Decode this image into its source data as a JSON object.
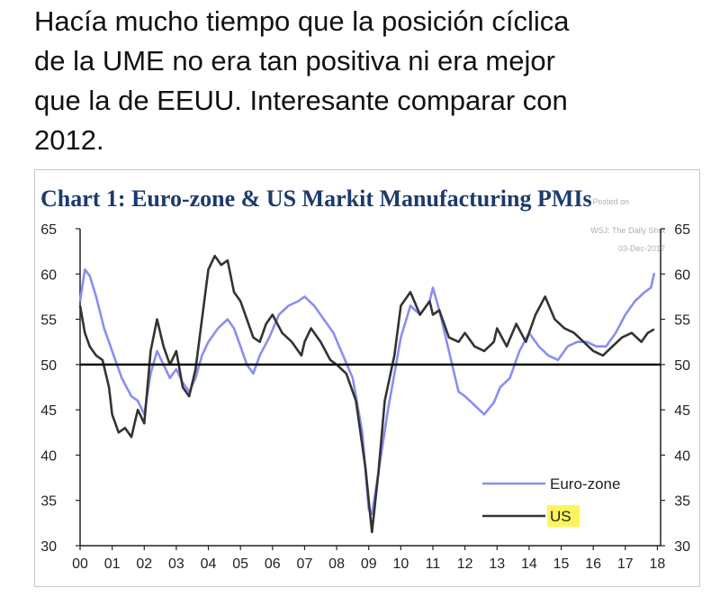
{
  "tweet": {
    "line1": "Hacía mucho tiempo que la posición cíclica",
    "line2": "de la UME no era tan positiva ni era mejor",
    "line3": "que la de EEUU. Interesante comparar con",
    "line4": "2012."
  },
  "chart_data": {
    "type": "line",
    "title": "Chart 1: Euro-zone & US Markit Manufacturing PMIs",
    "watermark": {
      "line1": "Posted on",
      "line2": "WSJ: The Daily Shot",
      "line3": "03-Dec-2017"
    },
    "xlabel": "",
    "ylabel": "",
    "ylim": [
      30,
      65
    ],
    "yticks": [
      30,
      35,
      40,
      45,
      50,
      55,
      60,
      65
    ],
    "xlim": [
      2000,
      2018.1
    ],
    "xtick_labels": [
      "00",
      "01",
      "02",
      "03",
      "04",
      "05",
      "06",
      "07",
      "08",
      "09",
      "10",
      "11",
      "12",
      "13",
      "14",
      "15",
      "16",
      "17",
      "18"
    ],
    "reference_line": 50,
    "legend_position": "bottom-right",
    "series": [
      {
        "name": "Euro-zone",
        "color": "#8a8ef0",
        "x": [
          2000.0,
          2000.15,
          2000.3,
          2000.5,
          2000.75,
          2001.0,
          2001.3,
          2001.6,
          2001.8,
          2002.0,
          2002.2,
          2002.4,
          2002.6,
          2002.8,
          2003.0,
          2003.2,
          2003.4,
          2003.6,
          2003.8,
          2004.0,
          2004.3,
          2004.6,
          2004.8,
          2005.0,
          2005.2,
          2005.4,
          2005.6,
          2005.9,
          2006.2,
          2006.5,
          2006.8,
          2007.0,
          2007.3,
          2007.6,
          2007.9,
          2008.2,
          2008.5,
          2008.8,
          2009.0,
          2009.1,
          2009.3,
          2009.6,
          2010.0,
          2010.3,
          2010.6,
          2010.9,
          2011.0,
          2011.2,
          2011.5,
          2011.8,
          2012.0,
          2012.3,
          2012.6,
          2012.9,
          2013.1,
          2013.4,
          2013.7,
          2014.0,
          2014.3,
          2014.6,
          2014.9,
          2015.2,
          2015.5,
          2015.8,
          2016.1,
          2016.4,
          2016.7,
          2017.0,
          2017.3,
          2017.6,
          2017.8,
          2017.9
        ],
        "values": [
          57.0,
          60.5,
          59.8,
          57.5,
          54.0,
          51.5,
          48.5,
          46.5,
          46.0,
          44.5,
          49.0,
          51.5,
          50.0,
          48.5,
          49.5,
          48.0,
          47.0,
          48.5,
          51.0,
          52.5,
          54.0,
          55.0,
          54.0,
          52.0,
          50.0,
          49.0,
          51.0,
          53.0,
          55.5,
          56.5,
          57.0,
          57.5,
          56.5,
          55.0,
          53.5,
          51.0,
          48.5,
          42.5,
          34.0,
          33.5,
          38.0,
          45.0,
          53.0,
          56.5,
          55.5,
          57.0,
          58.5,
          56.0,
          51.5,
          47.0,
          46.5,
          45.5,
          44.5,
          45.8,
          47.5,
          48.5,
          51.5,
          53.5,
          52.0,
          51.0,
          50.5,
          52.0,
          52.5,
          52.5,
          52.0,
          52.0,
          53.5,
          55.5,
          57.0,
          58.0,
          58.5,
          60.1
        ]
      },
      {
        "name": "US",
        "color": "#333333",
        "x": [
          2000.0,
          2000.15,
          2000.3,
          2000.5,
          2000.7,
          2000.9,
          2001.0,
          2001.2,
          2001.4,
          2001.6,
          2001.8,
          2002.0,
          2002.2,
          2002.4,
          2002.6,
          2002.8,
          2003.0,
          2003.2,
          2003.4,
          2003.6,
          2003.8,
          2004.0,
          2004.2,
          2004.4,
          2004.6,
          2004.8,
          2005.0,
          2005.2,
          2005.4,
          2005.6,
          2005.8,
          2006.0,
          2006.3,
          2006.6,
          2006.9,
          2007.0,
          2007.2,
          2007.5,
          2007.8,
          2008.0,
          2008.3,
          2008.6,
          2008.9,
          2009.0,
          2009.1,
          2009.3,
          2009.5,
          2009.8,
          2010.0,
          2010.3,
          2010.6,
          2010.9,
          2011.0,
          2011.2,
          2011.5,
          2011.8,
          2012.0,
          2012.3,
          2012.6,
          2012.9,
          2013.0,
          2013.3,
          2013.6,
          2013.9,
          2014.2,
          2014.5,
          2014.8,
          2015.1,
          2015.4,
          2015.7,
          2016.0,
          2016.3,
          2016.6,
          2016.9,
          2017.2,
          2017.5,
          2017.7,
          2017.9
        ],
        "values": [
          56.5,
          53.5,
          52.0,
          51.0,
          50.5,
          47.5,
          44.5,
          42.5,
          43.0,
          42.0,
          45.0,
          43.5,
          51.5,
          55.0,
          52.0,
          50.0,
          51.5,
          47.5,
          46.5,
          49.5,
          55.0,
          60.5,
          62.0,
          61.0,
          61.5,
          58.0,
          57.0,
          55.0,
          53.0,
          52.5,
          54.5,
          55.5,
          53.5,
          52.5,
          51.0,
          52.5,
          54.0,
          52.5,
          50.5,
          50.0,
          49.0,
          46.0,
          38.5,
          35.0,
          31.5,
          38.0,
          46.0,
          51.0,
          56.5,
          58.0,
          55.5,
          57.0,
          55.5,
          56.0,
          53.0,
          52.5,
          53.5,
          52.0,
          51.5,
          52.5,
          54.0,
          52.0,
          54.5,
          52.5,
          55.5,
          57.5,
          55.0,
          54.0,
          53.5,
          52.5,
          51.5,
          51.0,
          52.0,
          53.0,
          53.5,
          52.5,
          53.5,
          53.9
        ]
      }
    ]
  }
}
